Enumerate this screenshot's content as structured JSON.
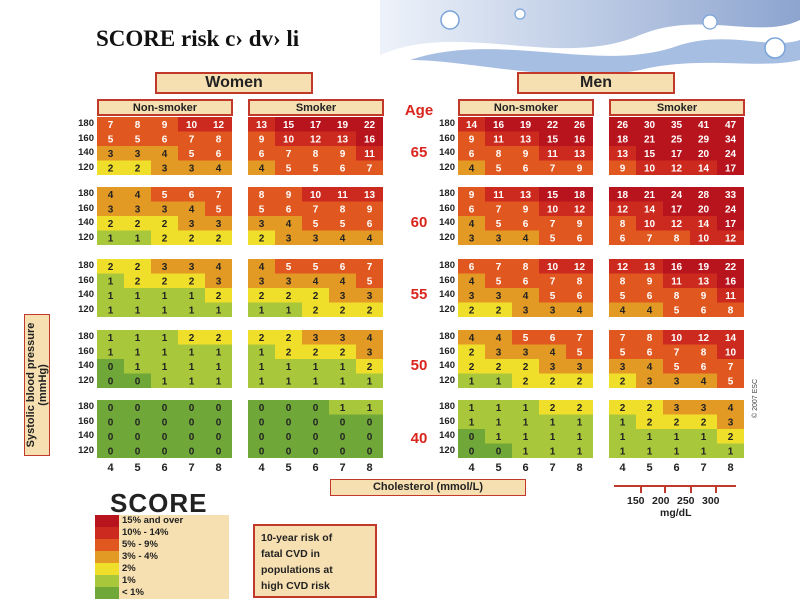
{
  "slide_title": "SCORE risk c› dv› li",
  "chart_data": {
    "type": "heatmap",
    "title": "SCORE risk c› dv› li",
    "group_labels": [
      "Women",
      "Men"
    ],
    "smoking_labels": [
      "Non-smoker",
      "Smoker"
    ],
    "age_header": "Age",
    "ages": [
      "65",
      "60",
      "55",
      "50",
      "40"
    ],
    "bp_values": [
      "180",
      "160",
      "140",
      "120"
    ],
    "cholesterol_values": [
      "4",
      "5",
      "6",
      "7",
      "8"
    ],
    "xlabel": "Cholesterol (mmol/L)",
    "ylabel": "Systolic blood pressure (mmHg)",
    "mgdl_values": [
      "150",
      "200",
      "250",
      "300"
    ],
    "mgdl_unit": "mg/dL",
    "colors": {
      "15plus": "#b8141d",
      "10to14": "#cc2a1e",
      "5to9": "#e0571f",
      "3to4": "#e39a25",
      "2": "#f0df2a",
      "1": "#a9c73a",
      "lt1": "#6fa839"
    },
    "panels": [
      [
        [
          [
            7,
            8,
            9,
            10,
            12
          ],
          [
            5,
            5,
            6,
            7,
            8
          ],
          [
            3,
            3,
            4,
            5,
            6
          ],
          [
            2,
            2,
            3,
            3,
            4
          ]
        ],
        [
          [
            13,
            15,
            17,
            19,
            22
          ],
          [
            9,
            10,
            12,
            13,
            16
          ],
          [
            6,
            7,
            8,
            9,
            11
          ],
          [
            4,
            5,
            5,
            6,
            7
          ]
        ],
        [
          [
            14,
            16,
            19,
            22,
            26
          ],
          [
            9,
            11,
            13,
            15,
            16
          ],
          [
            6,
            8,
            9,
            11,
            13
          ],
          [
            4,
            5,
            6,
            7,
            9
          ]
        ],
        [
          [
            26,
            30,
            35,
            41,
            47
          ],
          [
            18,
            21,
            25,
            29,
            34
          ],
          [
            13,
            15,
            17,
            20,
            24
          ],
          [
            9,
            10,
            12,
            14,
            17
          ]
        ]
      ],
      [
        [
          [
            4,
            4,
            5,
            6,
            7
          ],
          [
            3,
            3,
            3,
            4,
            5
          ],
          [
            2,
            2,
            2,
            3,
            3
          ],
          [
            1,
            1,
            2,
            2,
            2
          ]
        ],
        [
          [
            8,
            9,
            10,
            11,
            13
          ],
          [
            5,
            6,
            7,
            8,
            9
          ],
          [
            3,
            4,
            5,
            5,
            6
          ],
          [
            2,
            3,
            3,
            4,
            4
          ]
        ],
        [
          [
            9,
            11,
            13,
            15,
            18
          ],
          [
            6,
            7,
            9,
            10,
            12
          ],
          [
            4,
            5,
            6,
            7,
            9
          ],
          [
            3,
            3,
            4,
            5,
            6
          ]
        ],
        [
          [
            18,
            21,
            24,
            28,
            33
          ],
          [
            12,
            14,
            17,
            20,
            24
          ],
          [
            8,
            10,
            12,
            14,
            17
          ],
          [
            6,
            7,
            8,
            10,
            12
          ]
        ]
      ],
      [
        [
          [
            2,
            2,
            3,
            3,
            4
          ],
          [
            1,
            2,
            2,
            2,
            3
          ],
          [
            1,
            1,
            1,
            1,
            2
          ],
          [
            1,
            1,
            1,
            1,
            1
          ]
        ],
        [
          [
            4,
            5,
            5,
            6,
            7
          ],
          [
            3,
            3,
            4,
            4,
            5
          ],
          [
            2,
            2,
            2,
            3,
            3
          ],
          [
            1,
            1,
            2,
            2,
            2
          ]
        ],
        [
          [
            6,
            7,
            8,
            10,
            12
          ],
          [
            4,
            5,
            6,
            7,
            8
          ],
          [
            3,
            3,
            4,
            5,
            6
          ],
          [
            2,
            2,
            3,
            3,
            4
          ]
        ],
        [
          [
            12,
            13,
            16,
            19,
            22
          ],
          [
            8,
            9,
            11,
            13,
            16
          ],
          [
            5,
            6,
            8,
            9,
            11
          ],
          [
            4,
            4,
            5,
            6,
            8
          ]
        ]
      ],
      [
        [
          [
            1,
            1,
            1,
            2,
            2
          ],
          [
            1,
            1,
            1,
            1,
            1
          ],
          [
            0,
            1,
            1,
            1,
            1
          ],
          [
            0,
            0,
            1,
            1,
            1
          ]
        ],
        [
          [
            2,
            2,
            3,
            3,
            4
          ],
          [
            1,
            2,
            2,
            2,
            3
          ],
          [
            1,
            1,
            1,
            1,
            2
          ],
          [
            1,
            1,
            1,
            1,
            1
          ]
        ],
        [
          [
            4,
            4,
            5,
            6,
            7
          ],
          [
            2,
            3,
            3,
            4,
            5
          ],
          [
            2,
            2,
            2,
            3,
            3
          ],
          [
            1,
            1,
            2,
            2,
            2
          ]
        ],
        [
          [
            7,
            8,
            10,
            12,
            14
          ],
          [
            5,
            6,
            7,
            8,
            10
          ],
          [
            3,
            4,
            5,
            6,
            7
          ],
          [
            2,
            3,
            3,
            4,
            5
          ]
        ]
      ],
      [
        [
          [
            0,
            0,
            0,
            0,
            0
          ],
          [
            0,
            0,
            0,
            0,
            0
          ],
          [
            0,
            0,
            0,
            0,
            0
          ],
          [
            0,
            0,
            0,
            0,
            0
          ]
        ],
        [
          [
            0,
            0,
            0,
            1,
            1
          ],
          [
            0,
            0,
            0,
            0,
            0
          ],
          [
            0,
            0,
            0,
            0,
            0
          ],
          [
            0,
            0,
            0,
            0,
            0
          ]
        ],
        [
          [
            1,
            1,
            1,
            2,
            2
          ],
          [
            1,
            1,
            1,
            1,
            1
          ],
          [
            0,
            1,
            1,
            1,
            1
          ],
          [
            0,
            0,
            1,
            1,
            1
          ]
        ],
        [
          [
            2,
            2,
            3,
            3,
            4
          ],
          [
            1,
            2,
            2,
            2,
            3
          ],
          [
            1,
            1,
            1,
            1,
            2
          ],
          [
            1,
            1,
            1,
            1,
            1
          ]
        ]
      ]
    ],
    "legend": {
      "logo": "SCORE",
      "entries": [
        "15% and over",
        "10% - 14%",
        "5% - 9%",
        "3% - 4%",
        "2%",
        "1%",
        "< 1%"
      ],
      "description_lines": [
        "10-year risk of",
        "fatal CVD in",
        "populations at",
        "high CVD risk"
      ]
    },
    "copyright": "© 2007 ESC"
  }
}
